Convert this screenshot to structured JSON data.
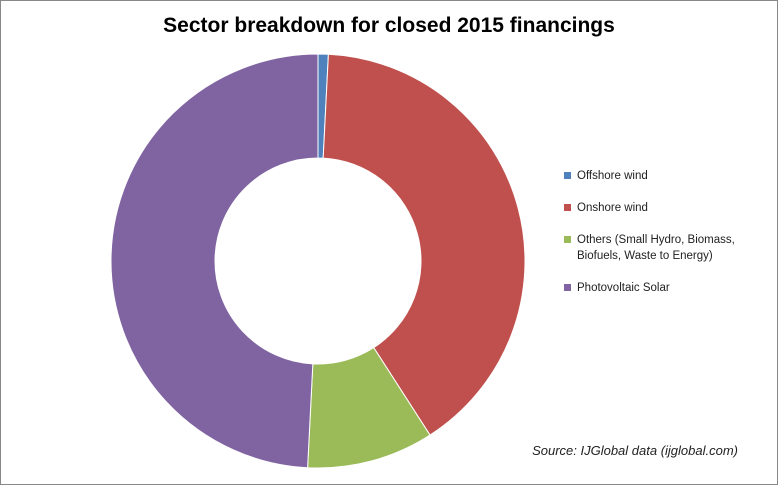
{
  "chart_data": {
    "type": "pie",
    "title": "Sector breakdown for closed 2015 financings",
    "categories": [
      "Offshore wind",
      "Onshore wind",
      "Others (Small Hydro, Biomass, Biofuels, Waste to Energy)",
      "Photovoltaic Solar"
    ],
    "values": [
      0.8,
      40.1,
      9.9,
      49.2
    ],
    "colors": [
      "#4f81bd",
      "#c0504d",
      "#9bbb59",
      "#8064a2"
    ],
    "donut": true,
    "legend": "right",
    "annotation": "Source: IJGlobal data (ijglobal.com)"
  }
}
